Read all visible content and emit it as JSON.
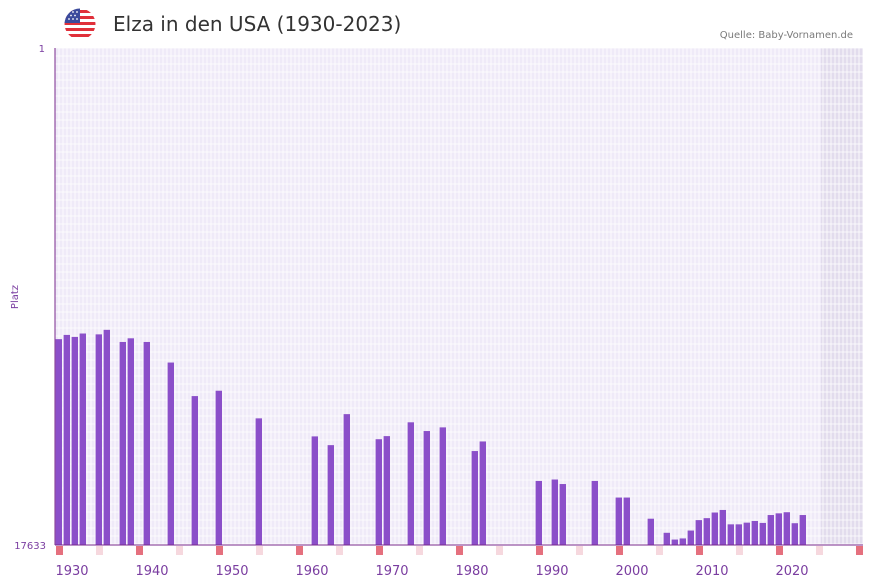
{
  "header": {
    "title": "Elza in den USA (1930-2023)",
    "source": "Quelle: Baby-Vornamen.de",
    "flag_icon": "usa-flag-icon"
  },
  "colors": {
    "bar": "#8b4fc9",
    "plot_bg": "#efeaf8",
    "grid": "#ffffff",
    "future_shade": "#e2dced",
    "axis": "#7a2a8c",
    "tick_text": "#7a3da0",
    "decade_marker": "#e5707e",
    "minor_marker": "#f6d8de"
  },
  "chart_data": {
    "type": "bar",
    "title": "Elza in den USA (1930-2023)",
    "xlabel": "",
    "ylabel": "Platz",
    "y_axis_reversed": true,
    "ylim": [
      1,
      17633
    ],
    "y_tick_labels": [
      "1",
      "17633"
    ],
    "xlim": [
      1928,
      2028
    ],
    "x_tick_labels": [
      "1930",
      "1940",
      "1950",
      "1960",
      "1970",
      "1980",
      "1990",
      "2000",
      "2010",
      "2020"
    ],
    "x_ticks": [
      1930,
      1940,
      1950,
      1960,
      1970,
      1980,
      1990,
      2000,
      2010,
      2020
    ],
    "data_end_year": 2023,
    "decade_marker_years": [
      1928,
      1938,
      1948,
      1958,
      1968,
      1978,
      1988,
      1998,
      2008,
      2018,
      2028
    ],
    "minor_marker_years": [
      1933,
      1943,
      1953,
      1963,
      1973,
      1983,
      1993,
      2003,
      2013,
      2023
    ],
    "series": [
      {
        "name": "Elza",
        "x": [
          1928,
          1929,
          1930,
          1931,
          1933,
          1934,
          1936,
          1937,
          1939,
          1942,
          1945,
          1948,
          1953,
          1960,
          1962,
          1964,
          1968,
          1969,
          1972,
          1974,
          1976,
          1980,
          1981,
          1988,
          1990,
          1991,
          1995,
          1998,
          1999,
          2002,
          2004,
          2005,
          2006,
          2007,
          2008,
          2009,
          2010,
          2011,
          2012,
          2013,
          2014,
          2015,
          2016,
          2017,
          2018,
          2019,
          2020,
          2021
        ],
        "values": [
          10330,
          10180,
          10250,
          10130,
          10160,
          10000,
          10430,
          10300,
          10430,
          11160,
          12350,
          12160,
          13140,
          13780,
          14090,
          12990,
          13880,
          13770,
          13280,
          13590,
          13460,
          14300,
          13960,
          15360,
          15310,
          15470,
          15360,
          15950,
          15950,
          16700,
          17200,
          17440,
          17400,
          17120,
          16750,
          16680,
          16480,
          16390,
          16900,
          16900,
          16840,
          16780,
          16850,
          16570,
          16510,
          16470,
          16860,
          16570
        ]
      }
    ]
  }
}
